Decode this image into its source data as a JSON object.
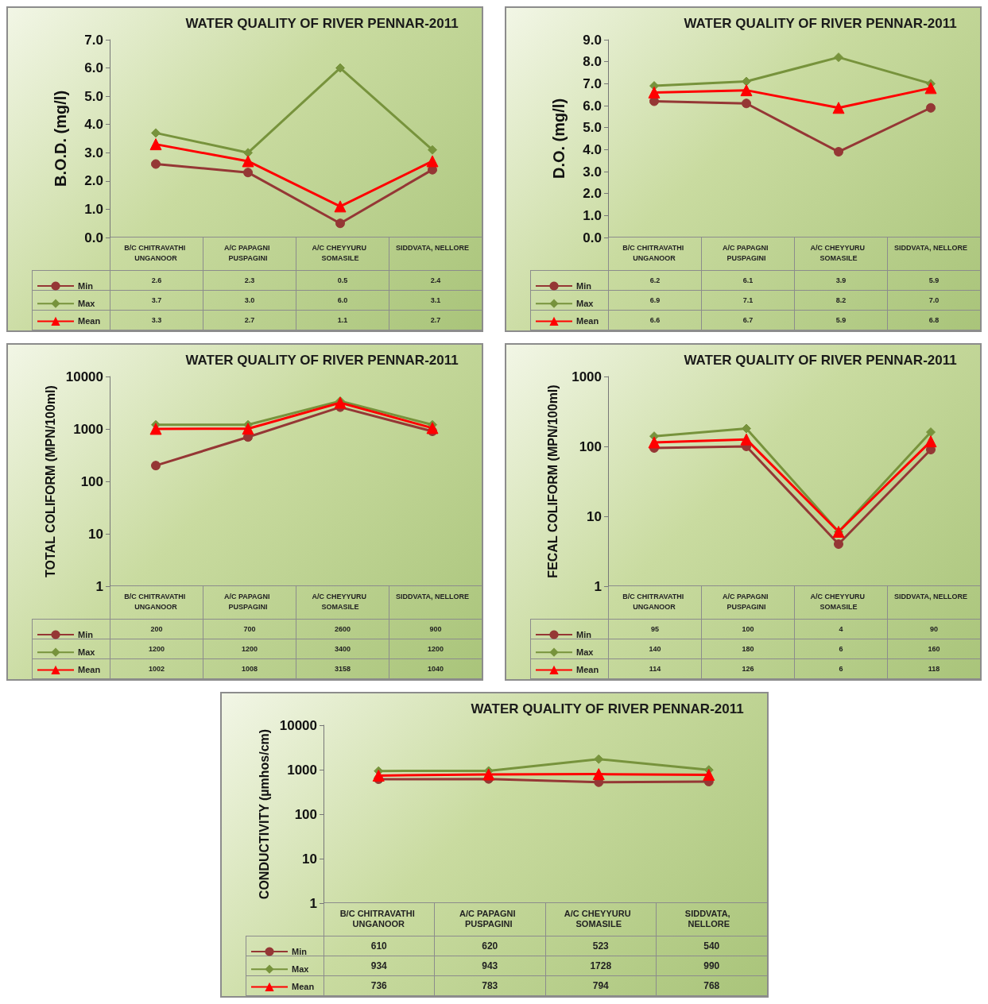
{
  "chart_data": [
    {
      "type": "line",
      "title": "WATER QUALITY OF RIVER PENNAR-2011",
      "ylabel": "B.O.D. (mg/l)",
      "categories": [
        "B/C CHITRAVATHI UNGANOOR",
        "A/C PAPAGNI PUSPAGINI",
        "A/C CHEYYURU SOMASILE",
        "SIDDVATA, NELLORE"
      ],
      "ylim": [
        0,
        7
      ],
      "yticks": [
        {
          "value": 0,
          "label": "0.0"
        },
        {
          "value": 1,
          "label": "1.0"
        },
        {
          "value": 2,
          "label": "2.0"
        },
        {
          "value": 3,
          "label": "3.0"
        },
        {
          "value": 4,
          "label": "4.0"
        },
        {
          "value": 5,
          "label": "5.0"
        },
        {
          "value": 6,
          "label": "6.0"
        },
        {
          "value": 7,
          "label": "7.0"
        }
      ],
      "grid": false,
      "legend": "bottom left",
      "series": [
        {
          "name": "Min",
          "color": "#953735",
          "marker": "circle",
          "values": [
            2.6,
            2.3,
            0.5,
            2.4
          ],
          "value_labels": [
            "2.6",
            "2.3",
            "0.5",
            "2.4"
          ]
        },
        {
          "name": "Max",
          "color": "#77933c",
          "marker": "diamond",
          "values": [
            3.7,
            3.0,
            6.0,
            3.1
          ],
          "value_labels": [
            "3.7",
            "3.0",
            "6.0",
            "3.1"
          ]
        },
        {
          "name": "Mean",
          "color": "#ff0000",
          "marker": "triangle",
          "values": [
            3.3,
            2.7,
            1.1,
            2.7
          ],
          "value_labels": [
            "3.3",
            "2.7",
            "1.1",
            "2.7"
          ]
        }
      ]
    },
    {
      "type": "line",
      "title": "WATER QUALITY OF RIVER PENNAR-2011",
      "ylabel": "D.O. (mg/l)",
      "categories": [
        "B/C CHITRAVATHI UNGANOOR",
        "A/C PAPAGNI PUSPAGINI",
        "A/C CHEYYURU SOMASILE",
        "SIDDVATA, NELLORE"
      ],
      "ylim": [
        0,
        9
      ],
      "yticks": [
        {
          "value": 0,
          "label": "0.0"
        },
        {
          "value": 1,
          "label": "1.0"
        },
        {
          "value": 2,
          "label": "2.0"
        },
        {
          "value": 3,
          "label": "3.0"
        },
        {
          "value": 4,
          "label": "4.0"
        },
        {
          "value": 5,
          "label": "5.0"
        },
        {
          "value": 6,
          "label": "6.0"
        },
        {
          "value": 7,
          "label": "7.0"
        },
        {
          "value": 8,
          "label": "8.0"
        },
        {
          "value": 9,
          "label": "9.0"
        }
      ],
      "grid": false,
      "legend": "bottom left",
      "series": [
        {
          "name": "Min",
          "color": "#953735",
          "marker": "circle",
          "values": [
            6.2,
            6.1,
            3.9,
            5.9
          ],
          "value_labels": [
            "6.2",
            "6.1",
            "3.9",
            "5.9"
          ]
        },
        {
          "name": "Max",
          "color": "#77933c",
          "marker": "diamond",
          "values": [
            6.9,
            7.1,
            8.2,
            7.0
          ],
          "value_labels": [
            "6.9",
            "7.1",
            "8.2",
            "7.0"
          ]
        },
        {
          "name": "Mean",
          "color": "#ff0000",
          "marker": "triangle",
          "values": [
            6.6,
            6.7,
            5.9,
            6.8
          ],
          "value_labels": [
            "6.6",
            "6.7",
            "5.9",
            "6.8"
          ]
        }
      ]
    },
    {
      "type": "line",
      "title": "WATER QUALITY OF RIVER PENNAR-2011",
      "ylabel": "TOTAL COLIFORM (MPN/100ml)",
      "categories": [
        "B/C CHITRAVATHI UNGANOOR",
        "A/C PAPAGNI PUSPAGINI",
        "A/C CHEYYURU SOMASILE",
        "SIDDVATA, NELLORE"
      ],
      "log": true,
      "ylim": [
        1,
        10000
      ],
      "yticks": [
        1,
        10,
        100,
        1000,
        10000
      ],
      "grid": false,
      "legend": "bottom left",
      "data_labels": true,
      "series": [
        {
          "name": "Min",
          "color": "#953735",
          "marker": "circle",
          "values": [
            200,
            700,
            2600,
            900
          ]
        },
        {
          "name": "Max",
          "color": "#77933c",
          "marker": "diamond",
          "values": [
            1200,
            1200,
            3400,
            1200
          ]
        },
        {
          "name": "Mean",
          "color": "#ff0000",
          "marker": "triangle",
          "values": [
            1002,
            1008,
            3158,
            1040
          ]
        }
      ]
    },
    {
      "type": "line",
      "title": "WATER QUALITY OF RIVER PENNAR-2011",
      "ylabel": "FECAL COLIFORM (MPN/100ml)",
      "categories": [
        "B/C CHITRAVATHI UNGANOOR",
        "A/C PAPAGNI PUSPAGINI",
        "A/C CHEYYURU SOMASILE",
        "SIDDVATA, NELLORE"
      ],
      "log": true,
      "ylim": [
        1,
        1000
      ],
      "yticks": [
        1,
        10,
        100,
        1000
      ],
      "grid": false,
      "legend": "bottom left",
      "data_labels": true,
      "series": [
        {
          "name": "Min",
          "color": "#953735",
          "marker": "circle",
          "values": [
            95,
            100,
            4,
            90
          ]
        },
        {
          "name": "Max",
          "color": "#77933c",
          "marker": "diamond",
          "values": [
            140,
            180,
            6,
            160
          ]
        },
        {
          "name": "Mean",
          "color": "#ff0000",
          "marker": "triangle",
          "values": [
            114,
            126,
            6,
            118
          ]
        }
      ]
    },
    {
      "type": "line",
      "title": "WATER QUALITY OF RIVER PENNAR-2011",
      "ylabel": "CONDUCTIVITY (µmhos/cm)",
      "categories": [
        "B/C CHITRAVATHI UNGANOOR",
        "A/C PAPAGNI PUSPAGINI",
        "A/C CHEYYURU SOMASILE",
        "SIDDVATA, NELLORE"
      ],
      "log": true,
      "ylim": [
        1,
        10000
      ],
      "yticks": [
        1,
        10,
        100,
        1000,
        10000
      ],
      "grid": false,
      "legend": "bottom left",
      "data_labels": true,
      "series": [
        {
          "name": "Min",
          "color": "#953735",
          "marker": "circle",
          "values": [
            610,
            620,
            523,
            540
          ]
        },
        {
          "name": "Max",
          "color": "#77933c",
          "marker": "diamond",
          "values": [
            934,
            943,
            1728,
            990
          ]
        },
        {
          "name": "Mean",
          "color": "#ff0000",
          "marker": "triangle",
          "values": [
            736,
            783,
            794,
            768
          ]
        }
      ]
    }
  ]
}
